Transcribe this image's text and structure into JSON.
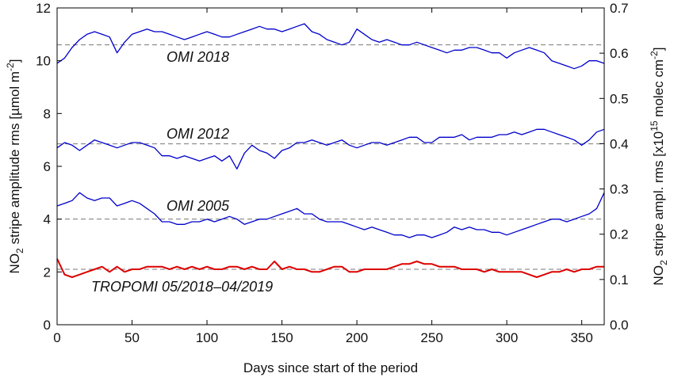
{
  "chart_data": {
    "type": "line",
    "xlabel": "Days since start of the period",
    "ylabel_left": {
      "main": "NO",
      "sub": "2",
      "rest": " stripe amplitude rms [µmol m",
      "sup": "-2",
      "end": "]"
    },
    "ylabel_right": {
      "main": "NO",
      "sub": "2",
      "rest": " stripe ampl. rms  [x10",
      "sup": "15",
      "rest2": " molec cm",
      "sup2": "-2",
      "end": "]"
    },
    "xlim": [
      0,
      365
    ],
    "ylim": [
      0,
      12
    ],
    "ylim_right": [
      0,
      0.7
    ],
    "xticks": [
      "0",
      "50",
      "100",
      "150",
      "200",
      "250",
      "300",
      "350"
    ],
    "yticks": [
      "0",
      "2",
      "4",
      "6",
      "8",
      "10",
      "12"
    ],
    "yticks_right": [
      "0.0",
      "0.1",
      "0.2",
      "0.3",
      "0.4",
      "0.5",
      "0.6",
      "0.7"
    ],
    "grid": false,
    "series": [
      {
        "annotation": "OMI  2018",
        "color": "#0000cc",
        "mean": 10.6,
        "x": [
          0,
          5,
          10,
          15,
          20,
          25,
          30,
          35,
          40,
          45,
          50,
          55,
          60,
          65,
          70,
          75,
          80,
          85,
          90,
          95,
          100,
          105,
          110,
          115,
          120,
          125,
          130,
          135,
          140,
          145,
          150,
          155,
          160,
          165,
          170,
          175,
          180,
          185,
          190,
          195,
          200,
          205,
          210,
          215,
          220,
          225,
          230,
          235,
          240,
          245,
          250,
          255,
          260,
          265,
          270,
          275,
          280,
          285,
          290,
          295,
          300,
          305,
          310,
          315,
          320,
          325,
          330,
          335,
          340,
          345,
          350,
          355,
          360,
          365
        ],
        "values": [
          9.9,
          10.1,
          10.5,
          10.8,
          11.0,
          11.1,
          11.0,
          10.9,
          10.3,
          10.7,
          11.0,
          11.1,
          11.2,
          11.1,
          11.1,
          11.0,
          10.9,
          10.8,
          10.9,
          11.0,
          11.1,
          11.0,
          10.9,
          10.9,
          11.0,
          11.1,
          11.2,
          11.3,
          11.2,
          11.2,
          11.1,
          11.2,
          11.3,
          11.4,
          11.1,
          11.0,
          10.8,
          10.7,
          10.6,
          10.7,
          11.2,
          11.0,
          10.8,
          10.7,
          10.8,
          10.7,
          10.6,
          10.6,
          10.7,
          10.6,
          10.5,
          10.4,
          10.3,
          10.4,
          10.4,
          10.5,
          10.5,
          10.4,
          10.3,
          10.3,
          10.1,
          10.3,
          10.4,
          10.5,
          10.4,
          10.3,
          10.0,
          9.9,
          9.8,
          9.7,
          9.8,
          10.0,
          10.0,
          9.9
        ]
      },
      {
        "annotation": "OMI  2012",
        "color": "#0000cc",
        "mean": 6.85,
        "x": [
          0,
          5,
          10,
          15,
          20,
          25,
          30,
          35,
          40,
          45,
          50,
          55,
          60,
          65,
          70,
          75,
          80,
          85,
          90,
          95,
          100,
          105,
          110,
          115,
          120,
          125,
          130,
          135,
          140,
          145,
          150,
          155,
          160,
          165,
          170,
          175,
          180,
          185,
          190,
          195,
          200,
          205,
          210,
          215,
          220,
          225,
          230,
          235,
          240,
          245,
          250,
          255,
          260,
          265,
          270,
          275,
          280,
          285,
          290,
          295,
          300,
          305,
          310,
          315,
          320,
          325,
          330,
          335,
          340,
          345,
          350,
          355,
          360,
          365
        ],
        "values": [
          6.7,
          6.9,
          6.8,
          6.6,
          6.8,
          7.0,
          6.9,
          6.8,
          6.7,
          6.8,
          6.9,
          6.9,
          6.8,
          6.7,
          6.4,
          6.4,
          6.3,
          6.4,
          6.3,
          6.2,
          6.3,
          6.4,
          6.2,
          6.4,
          5.9,
          6.5,
          6.8,
          6.6,
          6.5,
          6.3,
          6.6,
          6.7,
          6.9,
          6.9,
          7.0,
          6.9,
          6.8,
          6.9,
          7.0,
          6.8,
          6.7,
          6.8,
          6.9,
          6.9,
          6.8,
          6.9,
          7.0,
          7.1,
          7.1,
          6.9,
          6.9,
          7.1,
          7.1,
          7.1,
          7.2,
          7.0,
          7.1,
          7.1,
          7.1,
          7.2,
          7.2,
          7.3,
          7.2,
          7.3,
          7.4,
          7.4,
          7.3,
          7.2,
          7.1,
          7.0,
          6.8,
          7.0,
          7.3,
          7.4
        ]
      },
      {
        "annotation": "OMI  2005",
        "color": "#0000cc",
        "mean": 4.0,
        "x": [
          0,
          5,
          10,
          15,
          20,
          25,
          30,
          35,
          40,
          45,
          50,
          55,
          60,
          65,
          70,
          75,
          80,
          85,
          90,
          95,
          100,
          105,
          110,
          115,
          120,
          125,
          130,
          135,
          140,
          145,
          150,
          155,
          160,
          165,
          170,
          175,
          180,
          185,
          190,
          195,
          200,
          205,
          210,
          215,
          220,
          225,
          230,
          235,
          240,
          245,
          250,
          255,
          260,
          265,
          270,
          275,
          280,
          285,
          290,
          295,
          300,
          305,
          310,
          315,
          320,
          325,
          330,
          335,
          340,
          345,
          350,
          355,
          360,
          365
        ],
        "values": [
          4.5,
          4.6,
          4.7,
          5.0,
          4.8,
          4.7,
          4.8,
          4.8,
          4.5,
          4.6,
          4.7,
          4.6,
          4.4,
          4.2,
          3.9,
          3.9,
          3.8,
          3.8,
          3.9,
          3.9,
          4.0,
          3.9,
          4.0,
          4.1,
          4.0,
          3.8,
          3.9,
          4.0,
          4.0,
          4.1,
          4.2,
          4.3,
          4.4,
          4.2,
          4.2,
          4.0,
          3.9,
          3.9,
          3.9,
          3.8,
          3.7,
          3.6,
          3.7,
          3.6,
          3.5,
          3.4,
          3.4,
          3.3,
          3.4,
          3.4,
          3.3,
          3.4,
          3.5,
          3.7,
          3.6,
          3.7,
          3.6,
          3.6,
          3.5,
          3.5,
          3.4,
          3.5,
          3.6,
          3.7,
          3.8,
          3.9,
          4.0,
          4.0,
          3.9,
          4.0,
          4.1,
          4.2,
          4.4,
          5.0
        ]
      },
      {
        "annotation": "TROPOMI  05/2018–04/2019",
        "color": "#dd0000",
        "mean": 2.1,
        "x": [
          0,
          5,
          10,
          15,
          20,
          25,
          30,
          35,
          40,
          45,
          50,
          55,
          60,
          65,
          70,
          75,
          80,
          85,
          90,
          95,
          100,
          105,
          110,
          115,
          120,
          125,
          130,
          135,
          140,
          145,
          150,
          155,
          160,
          165,
          170,
          175,
          180,
          185,
          190,
          195,
          200,
          205,
          210,
          215,
          220,
          225,
          230,
          235,
          240,
          245,
          250,
          255,
          260,
          265,
          270,
          275,
          280,
          285,
          290,
          295,
          300,
          305,
          310,
          315,
          320,
          325,
          330,
          335,
          340,
          345,
          350,
          355,
          360,
          365
        ],
        "values": [
          2.5,
          1.9,
          1.8,
          1.9,
          2.0,
          2.1,
          2.2,
          2.0,
          2.2,
          2.0,
          2.1,
          2.1,
          2.2,
          2.2,
          2.2,
          2.1,
          2.2,
          2.1,
          2.2,
          2.1,
          2.2,
          2.1,
          2.1,
          2.2,
          2.2,
          2.1,
          2.2,
          2.1,
          2.1,
          2.4,
          2.1,
          2.2,
          2.1,
          2.1,
          2.0,
          2.0,
          2.1,
          2.2,
          2.2,
          2.0,
          2.0,
          2.1,
          2.1,
          2.1,
          2.1,
          2.2,
          2.3,
          2.3,
          2.4,
          2.3,
          2.3,
          2.2,
          2.2,
          2.2,
          2.1,
          2.1,
          2.1,
          2.0,
          2.1,
          2.0,
          2.0,
          2.0,
          2.0,
          1.9,
          1.8,
          1.9,
          2.0,
          2.0,
          2.1,
          2.0,
          2.1,
          2.1,
          2.2,
          2.2
        ]
      }
    ]
  }
}
